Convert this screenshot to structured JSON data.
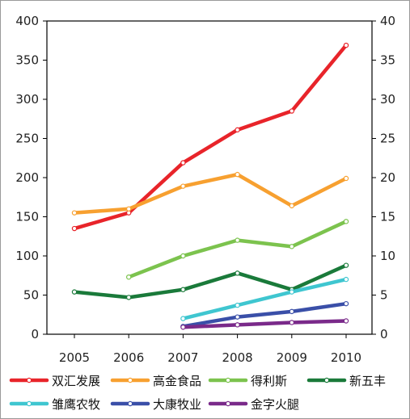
{
  "chart_data": {
    "type": "line",
    "x": [
      "2005",
      "2006",
      "2007",
      "2008",
      "2009",
      "2010"
    ],
    "ylim": [
      0,
      400
    ],
    "ylim_right": [
      0,
      40
    ],
    "y_ticks_left": [
      "400",
      "350",
      "300",
      "250",
      "200",
      "150",
      "100",
      "50",
      "0"
    ],
    "y_ticks_right": [
      "40",
      "35",
      "30",
      "25",
      "20",
      "15",
      "10",
      "5",
      "0"
    ],
    "grid": false,
    "legend_position": "bottom",
    "series": [
      {
        "name": "双汇发展",
        "color": "#e8242a",
        "values": [
          135,
          155,
          219,
          261,
          285,
          369
        ]
      },
      {
        "name": "高金食品",
        "color": "#f7a030",
        "values": [
          155,
          160,
          189,
          204,
          164,
          199
        ]
      },
      {
        "name": "得利斯",
        "color": "#7cc34e",
        "values": [
          null,
          73,
          100,
          120,
          112,
          144
        ]
      },
      {
        "name": "新五丰",
        "color": "#1a7a3a",
        "values": [
          54,
          47,
          57,
          78,
          57,
          88
        ]
      },
      {
        "name": "雏鹰农牧",
        "color": "#3fc6d0",
        "values": [
          null,
          null,
          20,
          37,
          54,
          70
        ]
      },
      {
        "name": "大康牧业",
        "color": "#3a4fa8",
        "values": [
          null,
          null,
          10,
          22,
          29,
          39
        ]
      },
      {
        "name": "金字火腿",
        "color": "#7a2a8a",
        "values": [
          null,
          null,
          9,
          12,
          15,
          17
        ]
      }
    ]
  }
}
